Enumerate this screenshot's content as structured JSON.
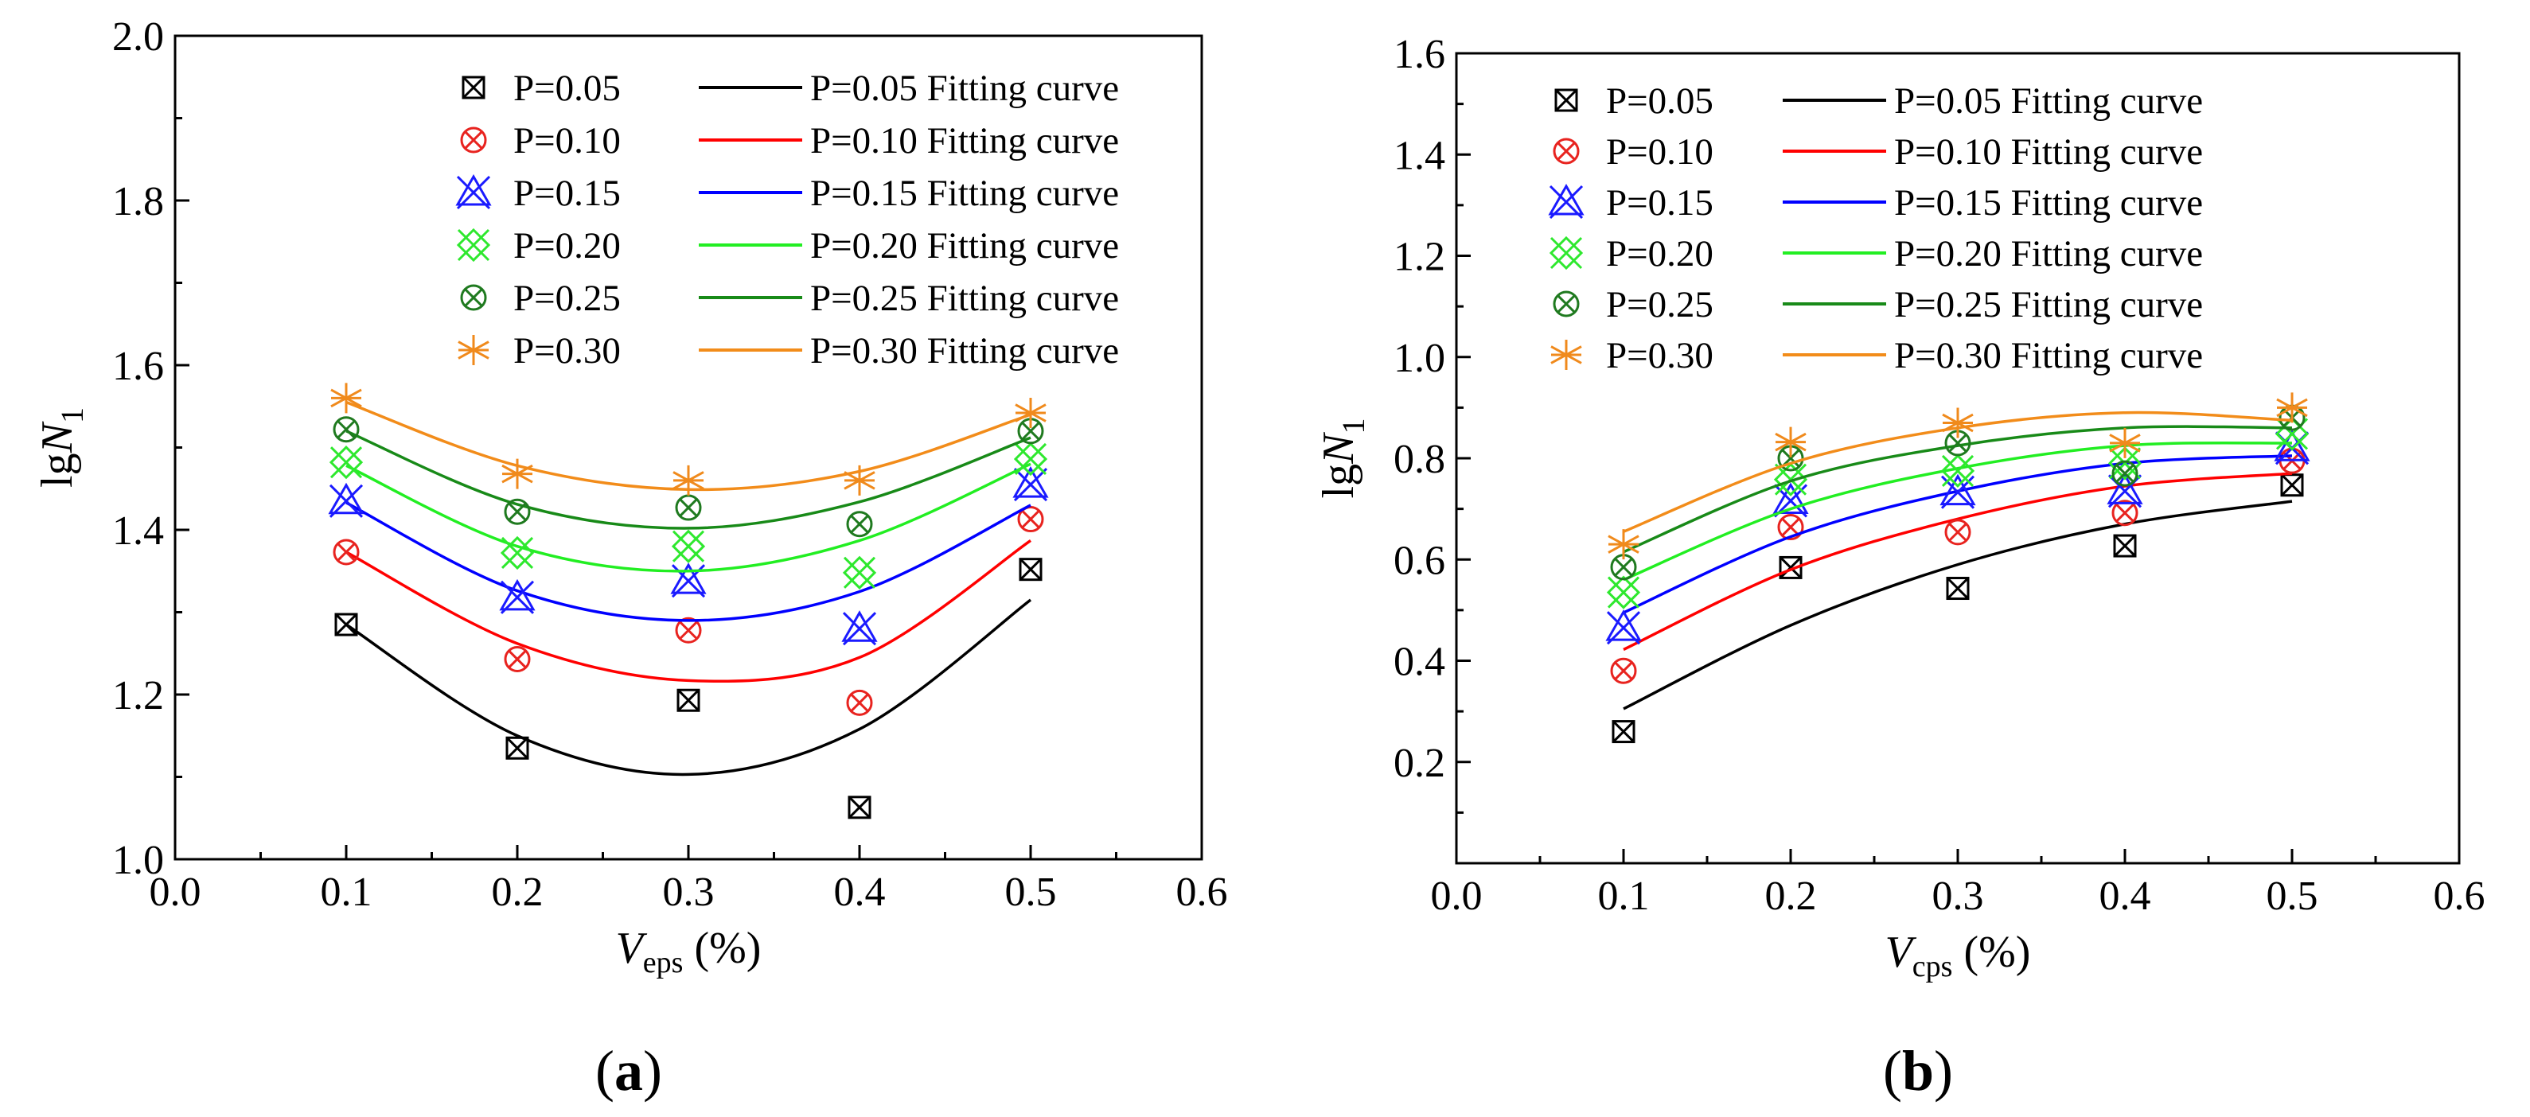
{
  "chart_data": [
    {
      "type": "scatter",
      "panel_label": "(a)",
      "caption_parts": {
        "open": "(",
        "letter": "a",
        "close": ")"
      },
      "xlabel_parts": {
        "var": "V",
        "sub": "eps",
        "unit": " (%)"
      },
      "ylabel_parts": {
        "prefix": "lg",
        "var": "N",
        "sub": "1"
      },
      "xlim": [
        0.0,
        0.6
      ],
      "ylim": [
        1.0,
        2.0
      ],
      "xticks": [
        "0.0",
        "0.1",
        "0.2",
        "0.3",
        "0.4",
        "0.5",
        "0.6"
      ],
      "yticks": [
        "1.0",
        "1.2",
        "1.4",
        "1.6",
        "1.8",
        "2.0"
      ],
      "x": [
        0.1,
        0.2,
        0.3,
        0.4,
        0.5
      ],
      "legend_location": "top-right",
      "series": [
        {
          "name": "P=0.05",
          "fit_name": "P=0.05 Fitting curve",
          "color": "#000000",
          "fit_color": "#000000",
          "marker": "square-x",
          "values": [
            1.285,
            1.135,
            1.193,
            1.063,
            1.352
          ],
          "fit": [
            1.285,
            1.15,
            1.103,
            1.158,
            1.315
          ]
        },
        {
          "name": "P=0.10",
          "fit_name": "P=0.10 Fitting curve",
          "color": "#e8231f",
          "fit_color": "#ff0000",
          "marker": "circle-x",
          "values": [
            1.373,
            1.243,
            1.278,
            1.19,
            1.413
          ],
          "fit": [
            1.373,
            1.262,
            1.217,
            1.245,
            1.387
          ]
        },
        {
          "name": "P=0.15",
          "fit_name": "P=0.15 Fitting curve",
          "color": "#1a1aff",
          "fit_color": "#0000ff",
          "marker": "triangle-x",
          "values": [
            1.435,
            1.318,
            1.338,
            1.28,
            1.455
          ],
          "fit": [
            1.433,
            1.326,
            1.29,
            1.325,
            1.43
          ]
        },
        {
          "name": "P=0.20",
          "fit_name": "P=0.20 Fitting curve",
          "color": "#2ee82e",
          "fit_color": "#22ee22",
          "marker": "diamond-x",
          "values": [
            1.482,
            1.372,
            1.38,
            1.348,
            1.486
          ],
          "fit": [
            1.478,
            1.38,
            1.35,
            1.387,
            1.48
          ]
        },
        {
          "name": "P=0.25",
          "fit_name": "P=0.25 Fitting curve",
          "color": "#1f7a1f",
          "fit_color": "#188a18",
          "marker": "circle-x",
          "values": [
            1.522,
            1.422,
            1.427,
            1.407,
            1.52
          ],
          "fit": [
            1.52,
            1.431,
            1.402,
            1.434,
            1.512
          ]
        },
        {
          "name": "P=0.30",
          "fit_name": "P=0.30 Fitting curve",
          "color": "#f08a1c",
          "fit_color": "#f28c1a",
          "marker": "asterisk",
          "values": [
            1.56,
            1.468,
            1.46,
            1.46,
            1.542
          ],
          "fit": [
            1.555,
            1.478,
            1.449,
            1.471,
            1.54
          ]
        }
      ]
    },
    {
      "type": "scatter",
      "panel_label": "(b)",
      "caption_parts": {
        "open": "(",
        "letter": "b",
        "close": ")"
      },
      "xlabel_parts": {
        "var": "V",
        "sub": "cps",
        "unit": " (%)"
      },
      "ylabel_parts": {
        "prefix": "lg",
        "var": "N",
        "sub": "1"
      },
      "xlim": [
        0.0,
        0.6
      ],
      "ylim": [
        0.0,
        1.6
      ],
      "xticks": [
        "0.0",
        "0.1",
        "0.2",
        "0.3",
        "0.4",
        "0.5",
        "0.6"
      ],
      "yticks": [
        "0.2",
        "0.4",
        "0.6",
        "0.8",
        "1.0",
        "1.2",
        "1.4",
        "1.6"
      ],
      "x": [
        0.1,
        0.2,
        0.3,
        0.4,
        0.5
      ],
      "legend_location": "top-right",
      "series": [
        {
          "name": "P=0.05",
          "fit_name": "P=0.05 Fitting curve",
          "color": "#000000",
          "fit_color": "#000000",
          "marker": "square-x",
          "values": [
            0.26,
            0.584,
            0.543,
            0.627,
            0.747
          ],
          "fit": [
            0.305,
            0.47,
            0.59,
            0.67,
            0.715
          ]
        },
        {
          "name": "P=0.10",
          "fit_name": "P=0.10 Fitting curve",
          "color": "#e8231f",
          "fit_color": "#ff0000",
          "marker": "circle-x",
          "values": [
            0.38,
            0.664,
            0.654,
            0.692,
            0.795
          ],
          "fit": [
            0.422,
            0.58,
            0.68,
            0.745,
            0.77
          ]
        },
        {
          "name": "P=0.15",
          "fit_name": "P=0.15 Fitting curve",
          "color": "#1a1aff",
          "fit_color": "#0000ff",
          "marker": "triangle-x",
          "values": [
            0.465,
            0.716,
            0.733,
            0.735,
            0.82
          ],
          "fit": [
            0.495,
            0.645,
            0.735,
            0.79,
            0.805
          ]
        },
        {
          "name": "P=0.20",
          "fit_name": "P=0.20 Fitting curve",
          "color": "#2ee82e",
          "fit_color": "#22ee22",
          "marker": "diamond-x",
          "values": [
            0.535,
            0.758,
            0.775,
            0.79,
            0.848
          ],
          "fit": [
            0.56,
            0.7,
            0.78,
            0.825,
            0.83
          ]
        },
        {
          "name": "P=0.25",
          "fit_name": "P=0.25 Fitting curve",
          "color": "#1f7a1f",
          "fit_color": "#188a18",
          "marker": "circle-x",
          "values": [
            0.585,
            0.8,
            0.83,
            0.77,
            0.88
          ],
          "fit": [
            0.615,
            0.755,
            0.825,
            0.86,
            0.86
          ]
        },
        {
          "name": "P=0.30",
          "fit_name": "P=0.30 Fitting curve",
          "color": "#f08a1c",
          "fit_color": "#f28c1a",
          "marker": "asterisk",
          "values": [
            0.63,
            0.832,
            0.87,
            0.83,
            0.9
          ],
          "fit": [
            0.655,
            0.79,
            0.86,
            0.89,
            0.875
          ]
        }
      ]
    }
  ]
}
